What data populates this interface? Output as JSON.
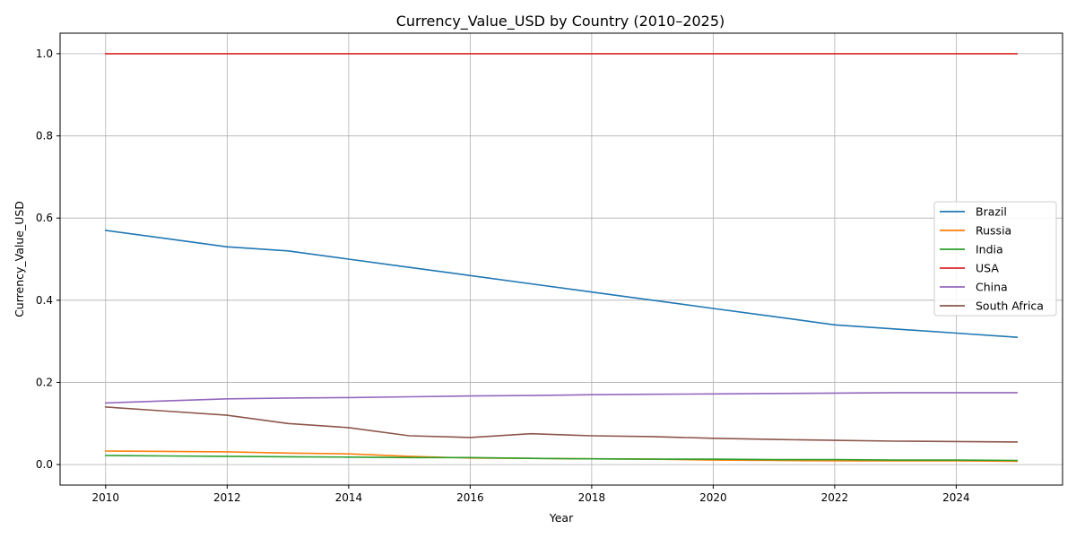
{
  "chart_data": {
    "type": "line",
    "title": "Currency_Value_USD by Country (2010–2025)",
    "xlabel": "Year",
    "ylabel": "Currency_Value_USD",
    "xlim": [
      2009.25,
      2025.75
    ],
    "ylim": [
      -0.05,
      1.05
    ],
    "xticks": [
      2010,
      2012,
      2014,
      2016,
      2018,
      2020,
      2022,
      2024
    ],
    "xtick_labels": [
      "2010",
      "2012",
      "2014",
      "2016",
      "2018",
      "2020",
      "2022",
      "2024"
    ],
    "yticks": [
      0.0,
      0.2,
      0.4,
      0.6,
      0.8,
      1.0
    ],
    "ytick_labels": [
      "0.0",
      "0.2",
      "0.4",
      "0.6",
      "0.8",
      "1.0"
    ],
    "grid": true,
    "legend_position": "right",
    "x": [
      2010,
      2011,
      2012,
      2013,
      2014,
      2015,
      2016,
      2017,
      2018,
      2019,
      2020,
      2021,
      2022,
      2023,
      2024,
      2025
    ],
    "series": [
      {
        "name": "Brazil",
        "color": "#1f77b4",
        "values": [
          0.57,
          0.55,
          0.53,
          0.52,
          0.5,
          0.48,
          0.46,
          0.44,
          0.42,
          0.4,
          0.38,
          0.36,
          0.34,
          0.33,
          0.32,
          0.31
        ]
      },
      {
        "name": "Russia",
        "color": "#ff7f0e",
        "values": [
          0.033,
          0.032,
          0.031,
          0.028,
          0.026,
          0.02,
          0.016,
          0.015,
          0.014,
          0.013,
          0.011,
          0.01,
          0.009,
          0.009,
          0.009,
          0.008
        ]
      },
      {
        "name": "India",
        "color": "#2ca02c",
        "values": [
          0.022,
          0.021,
          0.02,
          0.019,
          0.018,
          0.017,
          0.017,
          0.015,
          0.014,
          0.013,
          0.013,
          0.012,
          0.012,
          0.011,
          0.011,
          0.01
        ]
      },
      {
        "name": "USA",
        "color": "#d62728",
        "values": [
          1.0,
          1.0,
          1.0,
          1.0,
          1.0,
          1.0,
          1.0,
          1.0,
          1.0,
          1.0,
          1.0,
          1.0,
          1.0,
          1.0,
          1.0,
          1.0
        ]
      },
      {
        "name": "China",
        "color": "#9467bd",
        "values": [
          0.15,
          0.155,
          0.16,
          0.162,
          0.163,
          0.165,
          0.167,
          0.168,
          0.17,
          0.171,
          0.172,
          0.173,
          0.174,
          0.175,
          0.175,
          0.175
        ]
      },
      {
        "name": "South Africa",
        "color": "#8c564b",
        "values": [
          0.14,
          0.13,
          0.12,
          0.1,
          0.09,
          0.07,
          0.066,
          0.075,
          0.07,
          0.068,
          0.064,
          0.061,
          0.059,
          0.057,
          0.056,
          0.055
        ]
      }
    ]
  }
}
